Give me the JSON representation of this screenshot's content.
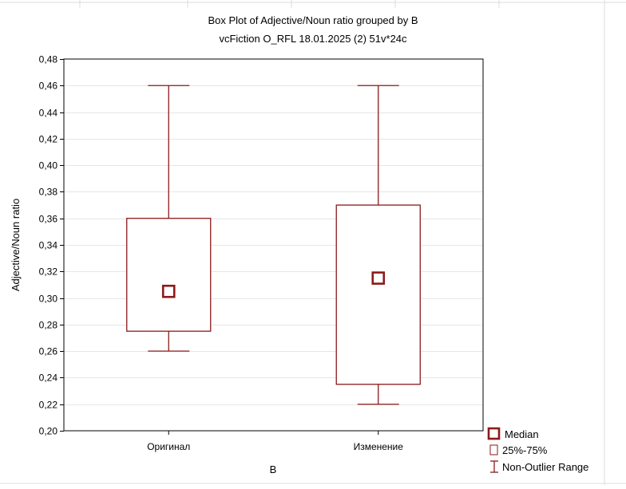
{
  "chart_data": {
    "type": "box",
    "title": "Box Plot of Adjective/Noun ratio grouped by  B",
    "subtitle": "vcFiction O_RFL 18.01.2025 (2) 51v*24c",
    "xlabel": "B",
    "ylabel": "Adjective/Noun ratio",
    "ylim": [
      0.2,
      0.48
    ],
    "yticks": [
      "0,20",
      "0,22",
      "0,24",
      "0,26",
      "0,28",
      "0,30",
      "0,32",
      "0,34",
      "0,36",
      "0,38",
      "0,40",
      "0,42",
      "0,44",
      "0,46",
      "0,48"
    ],
    "grid": true,
    "legend_position": "bottom-right",
    "categories": [
      "Оригинал",
      "Изменение"
    ],
    "series": [
      {
        "category": "Оригинал",
        "min": 0.26,
        "q1": 0.275,
        "median": 0.305,
        "q3": 0.36,
        "max": 0.46
      },
      {
        "category": "Изменение",
        "min": 0.22,
        "q1": 0.235,
        "median": 0.315,
        "q3": 0.37,
        "max": 0.46
      }
    ],
    "legend": {
      "median": "Median",
      "box": "25%-75%",
      "range": "Non-Outlier Range"
    },
    "colors": {
      "box_stroke": "#8b1a1a",
      "grid": "#e6e6e6",
      "background": "#ffffff"
    }
  }
}
